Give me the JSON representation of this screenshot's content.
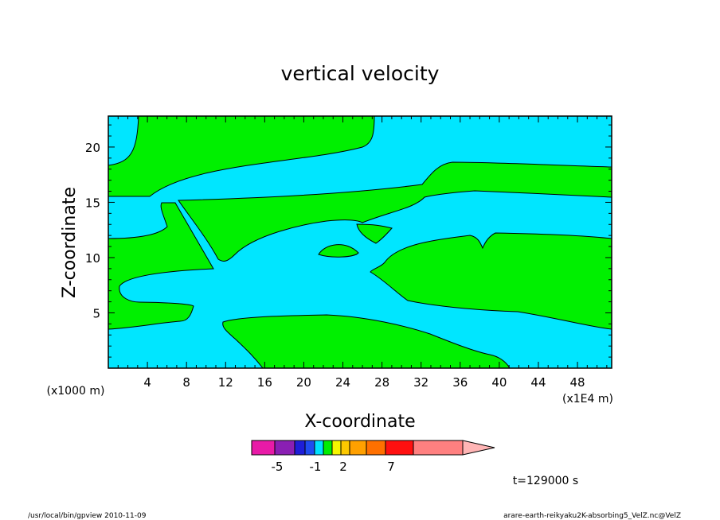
{
  "chart_data": {
    "type": "heatmap",
    "title": "vertical velocity",
    "xlabel": "X-coordinate",
    "ylabel": "Z-coordinate",
    "x_unit_label": "(x1E4 m)",
    "y_unit_label": "(x1000 m)",
    "xlim": [
      0,
      51.5
    ],
    "ylim": [
      0,
      22.8
    ],
    "x_ticks": [
      "4",
      "8",
      "12",
      "16",
      "20",
      "24",
      "28",
      "32",
      "36",
      "40",
      "44",
      "48"
    ],
    "y_ticks": [
      "5",
      "10",
      "15",
      "20"
    ],
    "time_label": "t=129000 s",
    "colorbar": {
      "colors": [
        "#e81aa7",
        "#8a1fb3",
        "#1e1ed8",
        "#1f4cf0",
        "#00e1ff",
        "#00ee00",
        "#f6f600",
        "#fcc800",
        "#ffa000",
        "#ff7000",
        "#ff1010",
        "#ff8080",
        "#ffb5b5"
      ],
      "tick_labels": [
        "-5",
        "-1",
        "2",
        "7"
      ],
      "region_colors": {
        "negative": "#00e6ff",
        "positive": "#00f000"
      }
    }
  },
  "footer": {
    "left": "/usr/local/bin/gpview  2010-11-09",
    "right": "arare-earth-reikyaku2K-absorbing5_VelZ.nc@VelZ"
  }
}
